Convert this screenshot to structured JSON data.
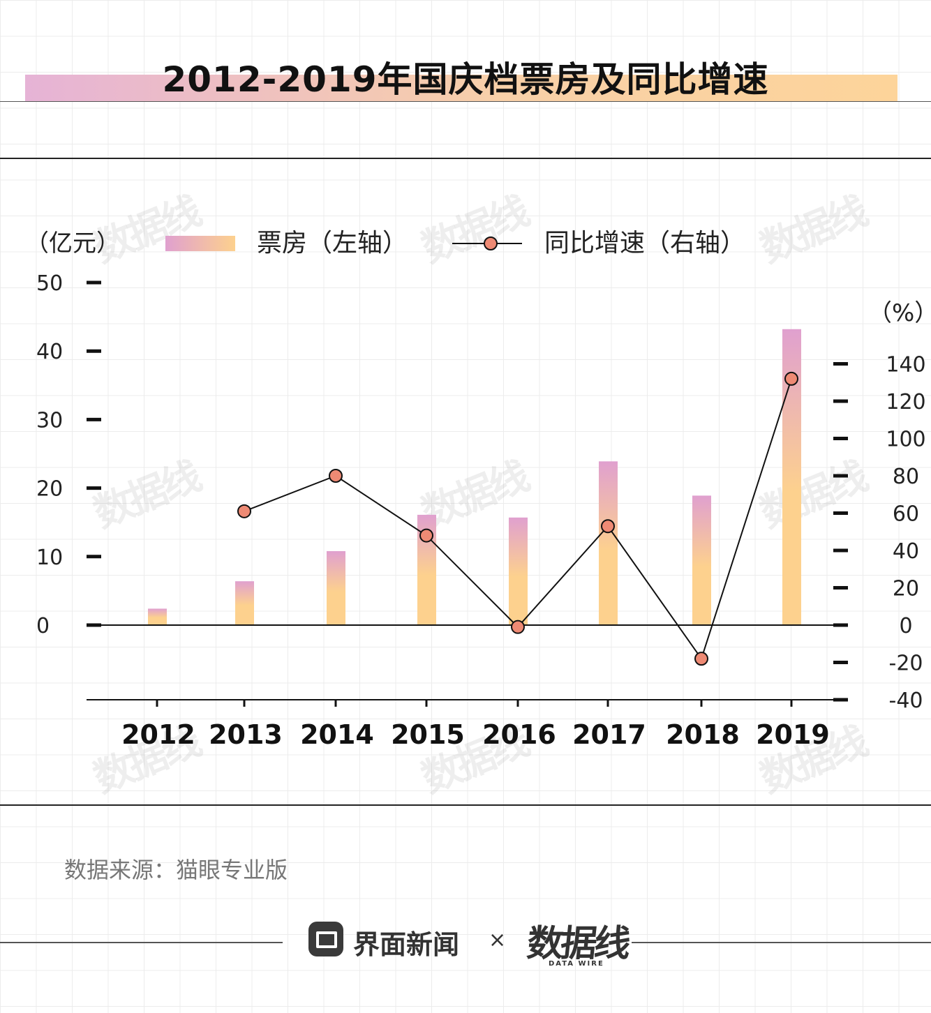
{
  "title": "2012-2019年国庆档票房及同比增速",
  "legend": {
    "left_unit": "（亿元）",
    "bar_label": "票房（左轴）",
    "line_label": "同比增速（右轴）",
    "right_unit": "（%）"
  },
  "colors": {
    "bar_top": "#e0a0cf",
    "bar_bottom": "#fdd18e",
    "marker": "#ee8a74",
    "line": "#111111"
  },
  "chart_data": {
    "type": "bar",
    "categories": [
      "2012",
      "2013",
      "2014",
      "2015",
      "2016",
      "2017",
      "2018",
      "2019"
    ],
    "series": [
      {
        "name": "票房（左轴）",
        "axis": "left",
        "type": "bar",
        "values": [
          2.4,
          6.4,
          10.8,
          16.1,
          15.7,
          23.9,
          18.9,
          43.2
        ]
      },
      {
        "name": "同比增速（右轴）",
        "axis": "right",
        "type": "line",
        "values": [
          null,
          61,
          80,
          48,
          -1,
          53,
          -18,
          132
        ]
      }
    ],
    "y_left": {
      "ticks": [
        0,
        10,
        20,
        30,
        40,
        50
      ],
      "ylim": [
        -10.7,
        50
      ]
    },
    "y_right": {
      "ticks": [
        -40,
        -20,
        0,
        20,
        40,
        60,
        80,
        100,
        120,
        140
      ],
      "ylim": [
        -40,
        146
      ]
    },
    "grid": false,
    "legend_position": "top"
  },
  "source": "数据来源：猫眼专业版",
  "footer": {
    "brand": "界面新闻",
    "times": "×",
    "partner_logo": "数据线",
    "partner_sub": "DATA WIRE"
  },
  "watermark": "数据线"
}
